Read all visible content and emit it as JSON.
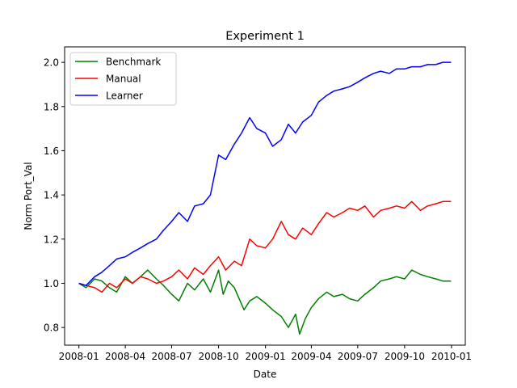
{
  "chart_data": {
    "type": "line",
    "title": "Experiment 1",
    "xlabel": "Date",
    "ylabel": "Norm Port_Val",
    "x_range": [
      "2007-12-04",
      "2010-01-28"
    ],
    "ylim": [
      0.72,
      2.07
    ],
    "x_ticks": [
      "2008-01",
      "2008-04",
      "2008-07",
      "2008-10",
      "2009-01",
      "2009-04",
      "2009-07",
      "2009-10",
      "2010-01"
    ],
    "y_ticks": [
      0.8,
      1.0,
      1.2,
      1.4,
      1.6,
      1.8,
      2.0
    ],
    "legend_position": "top-left",
    "grid": false,
    "series": [
      {
        "name": "Benchmark",
        "color": "#008000",
        "points": [
          [
            "2008-01-01",
            1.0
          ],
          [
            "2008-01-15",
            0.98
          ],
          [
            "2008-02-01",
            1.02
          ],
          [
            "2008-02-15",
            1.01
          ],
          [
            "2008-03-01",
            0.98
          ],
          [
            "2008-03-15",
            0.96
          ],
          [
            "2008-04-01",
            1.03
          ],
          [
            "2008-04-15",
            1.0
          ],
          [
            "2008-05-01",
            1.03
          ],
          [
            "2008-05-15",
            1.06
          ],
          [
            "2008-06-01",
            1.02
          ],
          [
            "2008-06-15",
            0.99
          ],
          [
            "2008-07-01",
            0.95
          ],
          [
            "2008-07-15",
            0.92
          ],
          [
            "2008-08-01",
            1.0
          ],
          [
            "2008-08-15",
            0.97
          ],
          [
            "2008-09-01",
            1.02
          ],
          [
            "2008-09-15",
            0.96
          ],
          [
            "2008-10-01",
            1.06
          ],
          [
            "2008-10-10",
            0.95
          ],
          [
            "2008-10-20",
            1.01
          ],
          [
            "2008-11-01",
            0.98
          ],
          [
            "2008-11-20",
            0.88
          ],
          [
            "2008-12-01",
            0.92
          ],
          [
            "2008-12-15",
            0.94
          ],
          [
            "2009-01-01",
            0.91
          ],
          [
            "2009-01-15",
            0.88
          ],
          [
            "2009-02-01",
            0.85
          ],
          [
            "2009-02-15",
            0.8
          ],
          [
            "2009-03-01",
            0.86
          ],
          [
            "2009-03-09",
            0.77
          ],
          [
            "2009-03-20",
            0.84
          ],
          [
            "2009-04-01",
            0.89
          ],
          [
            "2009-04-15",
            0.93
          ],
          [
            "2009-05-01",
            0.96
          ],
          [
            "2009-05-15",
            0.94
          ],
          [
            "2009-06-01",
            0.95
          ],
          [
            "2009-06-15",
            0.93
          ],
          [
            "2009-07-01",
            0.92
          ],
          [
            "2009-07-15",
            0.95
          ],
          [
            "2009-08-01",
            0.98
          ],
          [
            "2009-08-15",
            1.01
          ],
          [
            "2009-09-01",
            1.02
          ],
          [
            "2009-09-15",
            1.03
          ],
          [
            "2009-10-01",
            1.02
          ],
          [
            "2009-10-15",
            1.06
          ],
          [
            "2009-11-01",
            1.04
          ],
          [
            "2009-11-15",
            1.03
          ],
          [
            "2009-12-01",
            1.02
          ],
          [
            "2009-12-15",
            1.01
          ],
          [
            "2009-12-31",
            1.01
          ]
        ]
      },
      {
        "name": "Manual",
        "color": "#ff0000",
        "points": [
          [
            "2008-01-01",
            1.0
          ],
          [
            "2008-01-15",
            0.99
          ],
          [
            "2008-02-01",
            0.98
          ],
          [
            "2008-02-15",
            0.96
          ],
          [
            "2008-03-01",
            1.0
          ],
          [
            "2008-03-15",
            0.98
          ],
          [
            "2008-04-01",
            1.02
          ],
          [
            "2008-04-15",
            1.0
          ],
          [
            "2008-05-01",
            1.03
          ],
          [
            "2008-05-15",
            1.02
          ],
          [
            "2008-06-01",
            1.0
          ],
          [
            "2008-06-15",
            1.01
          ],
          [
            "2008-07-01",
            1.03
          ],
          [
            "2008-07-15",
            1.06
          ],
          [
            "2008-08-01",
            1.02
          ],
          [
            "2008-08-15",
            1.07
          ],
          [
            "2008-09-01",
            1.04
          ],
          [
            "2008-09-15",
            1.08
          ],
          [
            "2008-10-01",
            1.12
          ],
          [
            "2008-10-15",
            1.06
          ],
          [
            "2008-11-01",
            1.1
          ],
          [
            "2008-11-15",
            1.08
          ],
          [
            "2008-12-01",
            1.2
          ],
          [
            "2008-12-15",
            1.17
          ],
          [
            "2009-01-01",
            1.16
          ],
          [
            "2009-01-15",
            1.2
          ],
          [
            "2009-02-01",
            1.28
          ],
          [
            "2009-02-15",
            1.22
          ],
          [
            "2009-03-01",
            1.2
          ],
          [
            "2009-03-15",
            1.25
          ],
          [
            "2009-04-01",
            1.22
          ],
          [
            "2009-04-15",
            1.27
          ],
          [
            "2009-05-01",
            1.32
          ],
          [
            "2009-05-15",
            1.3
          ],
          [
            "2009-06-01",
            1.32
          ],
          [
            "2009-06-15",
            1.34
          ],
          [
            "2009-07-01",
            1.33
          ],
          [
            "2009-07-15",
            1.35
          ],
          [
            "2009-08-01",
            1.3
          ],
          [
            "2009-08-15",
            1.33
          ],
          [
            "2009-09-01",
            1.34
          ],
          [
            "2009-09-15",
            1.35
          ],
          [
            "2009-10-01",
            1.34
          ],
          [
            "2009-10-15",
            1.37
          ],
          [
            "2009-11-01",
            1.33
          ],
          [
            "2009-11-15",
            1.35
          ],
          [
            "2009-12-01",
            1.36
          ],
          [
            "2009-12-15",
            1.37
          ],
          [
            "2009-12-31",
            1.37
          ]
        ]
      },
      {
        "name": "Learner",
        "color": "#0000ff",
        "points": [
          [
            "2008-01-01",
            1.0
          ],
          [
            "2008-01-15",
            0.99
          ],
          [
            "2008-02-01",
            1.03
          ],
          [
            "2008-02-15",
            1.05
          ],
          [
            "2008-03-01",
            1.08
          ],
          [
            "2008-03-15",
            1.11
          ],
          [
            "2008-04-01",
            1.12
          ],
          [
            "2008-04-15",
            1.14
          ],
          [
            "2008-05-01",
            1.16
          ],
          [
            "2008-05-15",
            1.18
          ],
          [
            "2008-06-01",
            1.2
          ],
          [
            "2008-06-15",
            1.24
          ],
          [
            "2008-07-01",
            1.28
          ],
          [
            "2008-07-15",
            1.32
          ],
          [
            "2008-08-01",
            1.28
          ],
          [
            "2008-08-15",
            1.35
          ],
          [
            "2008-09-01",
            1.36
          ],
          [
            "2008-09-15",
            1.4
          ],
          [
            "2008-10-01",
            1.58
          ],
          [
            "2008-10-15",
            1.56
          ],
          [
            "2008-11-01",
            1.63
          ],
          [
            "2008-11-15",
            1.68
          ],
          [
            "2008-12-01",
            1.75
          ],
          [
            "2008-12-15",
            1.7
          ],
          [
            "2009-01-01",
            1.68
          ],
          [
            "2009-01-15",
            1.62
          ],
          [
            "2009-02-01",
            1.65
          ],
          [
            "2009-02-15",
            1.72
          ],
          [
            "2009-03-01",
            1.68
          ],
          [
            "2009-03-15",
            1.73
          ],
          [
            "2009-04-01",
            1.76
          ],
          [
            "2009-04-15",
            1.82
          ],
          [
            "2009-05-01",
            1.85
          ],
          [
            "2009-05-15",
            1.87
          ],
          [
            "2009-06-01",
            1.88
          ],
          [
            "2009-06-15",
            1.89
          ],
          [
            "2009-07-01",
            1.91
          ],
          [
            "2009-07-15",
            1.93
          ],
          [
            "2009-08-01",
            1.95
          ],
          [
            "2009-08-15",
            1.96
          ],
          [
            "2009-09-01",
            1.95
          ],
          [
            "2009-09-15",
            1.97
          ],
          [
            "2009-10-01",
            1.97
          ],
          [
            "2009-10-15",
            1.98
          ],
          [
            "2009-11-01",
            1.98
          ],
          [
            "2009-11-15",
            1.99
          ],
          [
            "2009-12-01",
            1.99
          ],
          [
            "2009-12-15",
            2.0
          ],
          [
            "2009-12-31",
            2.0
          ]
        ]
      }
    ]
  }
}
